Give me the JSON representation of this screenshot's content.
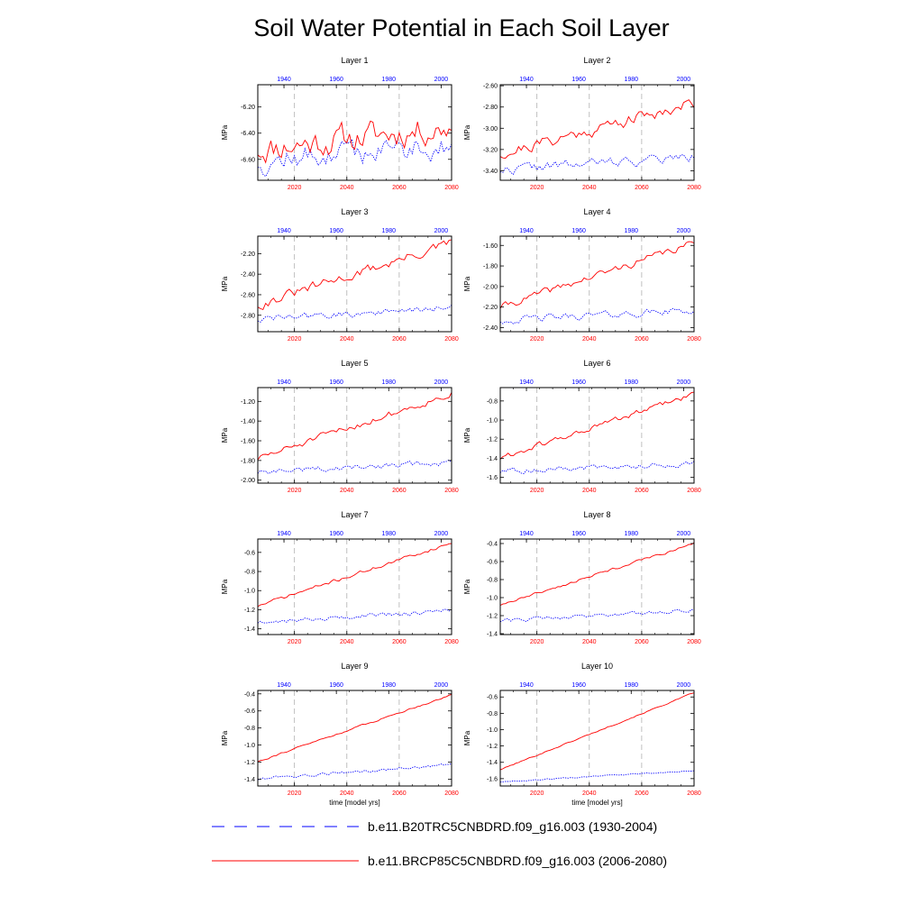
{
  "chart_data": {
    "type": "line",
    "title": "Soil Water Potential in Each Soil Layer",
    "ylabel": "MPa",
    "xlabel": "time [model yrs]",
    "top_axis_color": "#0000ff",
    "bottom_axis_color": "#ff0000",
    "grid": "vertical dashed lines at 2020, 2040, 2060",
    "top_x_ticks": [
      "1940",
      "1960",
      "1980",
      "2000"
    ],
    "bottom_x_ticks": [
      "2020",
      "2040",
      "2060",
      "2080"
    ],
    "xlim_bottom": [
      2006,
      2080
    ],
    "xlim_top": [
      1930,
      2004
    ],
    "series_styles": [
      {
        "name": "b.e11.B20TRC5CNBDRD.f09_g16.003 (1930-2004)",
        "color": "#0000ff",
        "dash": "dotted",
        "years": "1930-2004"
      },
      {
        "name": "b.e11.BRCP85C5CNBDRD.f09_g16.003 (2006-2080)",
        "color": "#ff0000",
        "dash": "solid",
        "years": "2006-2080"
      }
    ],
    "panels": [
      {
        "title": "Layer 1",
        "ylim": [
          -6.76,
          -6.03
        ],
        "yticks": [
          "-6.20",
          "-6.40",
          "-6.60"
        ],
        "red": {
          "start": -6.52,
          "end": -6.35,
          "noise": 0.09,
          "seed": 11
        },
        "blue": {
          "start": -6.62,
          "end": -6.48,
          "noise": 0.08,
          "seed": 12
        }
      },
      {
        "title": "Layer 2",
        "ylim": [
          -3.49,
          -2.59
        ],
        "yticks": [
          "-2.60",
          "-2.80",
          "-3.00",
          "-3.20",
          "-3.40"
        ],
        "red": {
          "start": -3.24,
          "end": -2.76,
          "noise": 0.05,
          "seed": 21
        },
        "blue": {
          "start": -3.39,
          "end": -3.27,
          "noise": 0.04,
          "seed": 22
        }
      },
      {
        "title": "Layer 3",
        "ylim": [
          -2.96,
          -2.03
        ],
        "yticks": [
          "-2.20",
          "-2.40",
          "-2.60",
          "-2.80"
        ],
        "red": {
          "start": -2.7,
          "end": -2.1,
          "noise": 0.04,
          "seed": 31
        },
        "blue": {
          "start": -2.84,
          "end": -2.73,
          "noise": 0.03,
          "seed": 32
        }
      },
      {
        "title": "Layer 4",
        "ylim": [
          -2.44,
          -1.51
        ],
        "yticks": [
          "-1.60",
          "-1.80",
          "-2.00",
          "-2.20",
          "-2.40"
        ],
        "red": {
          "start": -2.2,
          "end": -1.58,
          "noise": 0.03,
          "seed": 41
        },
        "blue": {
          "start": -2.33,
          "end": -2.23,
          "noise": 0.03,
          "seed": 42
        }
      },
      {
        "title": "Layer 5",
        "ylim": [
          -2.03,
          -1.06
        ],
        "yticks": [
          "-1.20",
          "-1.40",
          "-1.60",
          "-1.80",
          "-2.00"
        ],
        "red": {
          "start": -1.78,
          "end": -1.12,
          "noise": 0.03,
          "seed": 51
        },
        "blue": {
          "start": -1.92,
          "end": -1.82,
          "noise": 0.025,
          "seed": 52
        }
      },
      {
        "title": "Layer 6",
        "ylim": [
          -1.66,
          -0.66
        ],
        "yticks": [
          "-0.8",
          "-1.0",
          "-1.2",
          "-1.4",
          "-1.6"
        ],
        "red": {
          "start": -1.4,
          "end": -0.73,
          "noise": 0.025,
          "seed": 61
        },
        "blue": {
          "start": -1.54,
          "end": -1.45,
          "noise": 0.025,
          "seed": 62
        }
      },
      {
        "title": "Layer 7",
        "ylim": [
          -1.46,
          -0.46
        ],
        "yticks": [
          "-0.6",
          "-0.8",
          "-1.0",
          "-1.2",
          "-1.4"
        ],
        "red": {
          "start": -1.16,
          "end": -0.5,
          "noise": 0.015,
          "seed": 71
        },
        "blue": {
          "start": -1.33,
          "end": -1.21,
          "noise": 0.02,
          "seed": 72
        }
      },
      {
        "title": "Layer 8",
        "ylim": [
          -1.41,
          -0.35
        ],
        "yticks": [
          "-0.4",
          "-0.6",
          "-0.8",
          "-1.0",
          "-1.2",
          "-1.4"
        ],
        "red": {
          "start": -1.08,
          "end": -0.4,
          "noise": 0.012,
          "seed": 81
        },
        "blue": {
          "start": -1.26,
          "end": -1.13,
          "noise": 0.02,
          "seed": 82
        }
      },
      {
        "title": "Layer 9",
        "ylim": [
          -1.48,
          -0.36
        ],
        "yticks": [
          "-0.4",
          "-0.6",
          "-0.8",
          "-1.0",
          "-1.2",
          "-1.4"
        ],
        "red": {
          "start": -1.19,
          "end": -0.41,
          "noise": 0.008,
          "seed": 91
        },
        "blue": {
          "start": -1.4,
          "end": -1.23,
          "noise": 0.015,
          "seed": 92
        }
      },
      {
        "title": "Layer 10",
        "ylim": [
          -1.69,
          -0.52
        ],
        "yticks": [
          "-0.6",
          "-0.8",
          "-1.0",
          "-1.2",
          "-1.4",
          "-1.6"
        ],
        "red": {
          "start": -1.49,
          "end": -0.55,
          "noise": 0.006,
          "seed": 101
        },
        "blue": {
          "start": -1.64,
          "end": -1.5,
          "noise": 0.006,
          "seed": 102
        }
      }
    ]
  }
}
